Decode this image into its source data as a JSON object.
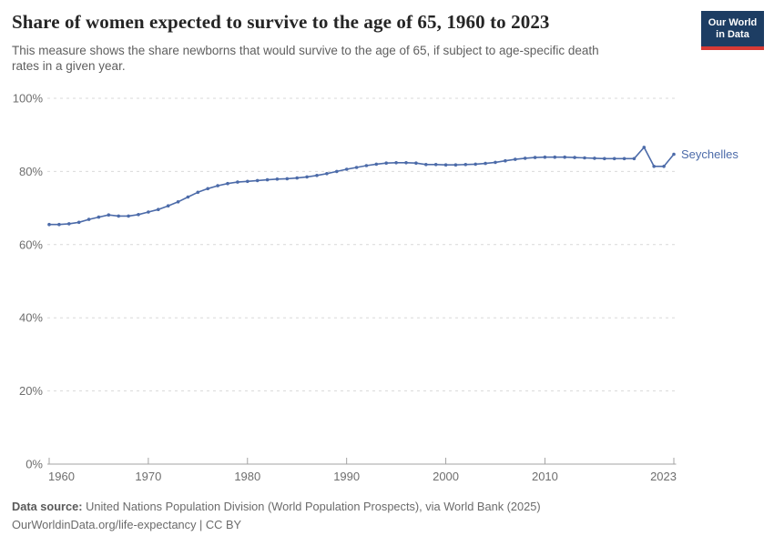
{
  "header": {
    "title": "Share of women expected to survive to the age of 65, 1960 to 2023",
    "subtitle": "This measure shows the share newborns that would survive to the age of 65, if subject to age-specific death\nrates in a given year.",
    "logo": {
      "line1": "Our World",
      "line2": "in Data"
    }
  },
  "chart_data": {
    "type": "line",
    "title": "Share of women expected to survive to the age of 65, 1960 to 2023",
    "xlabel": "",
    "ylabel": "",
    "xlim": [
      1960,
      2023
    ],
    "ylim": [
      0,
      100
    ],
    "grid": "horizontal-dashed",
    "legend_position": "end-of-line-label",
    "yticks": [
      0,
      20,
      40,
      60,
      80,
      100
    ],
    "ytick_labels": [
      "0%",
      "20%",
      "40%",
      "60%",
      "80%",
      "100%"
    ],
    "xticks": [
      1960,
      1970,
      1980,
      1990,
      2000,
      2010,
      2023
    ],
    "xtick_labels": [
      "1960",
      "1970",
      "1980",
      "1990",
      "2000",
      "2010",
      "2023"
    ],
    "series": [
      {
        "name": "Seychelles",
        "color": "#4c6ba9",
        "years": [
          1960,
          1961,
          1962,
          1963,
          1964,
          1965,
          1966,
          1967,
          1968,
          1969,
          1970,
          1971,
          1972,
          1973,
          1974,
          1975,
          1976,
          1977,
          1978,
          1979,
          1980,
          1981,
          1982,
          1983,
          1984,
          1985,
          1986,
          1987,
          1988,
          1989,
          1990,
          1991,
          1992,
          1993,
          1994,
          1995,
          1996,
          1997,
          1998,
          1999,
          2000,
          2001,
          2002,
          2003,
          2004,
          2005,
          2006,
          2007,
          2008,
          2009,
          2010,
          2011,
          2012,
          2013,
          2014,
          2015,
          2016,
          2017,
          2018,
          2019,
          2020,
          2021,
          2022,
          2023
        ],
        "values": [
          65.5,
          65.5,
          65.7,
          66.1,
          66.9,
          67.5,
          68.1,
          67.8,
          67.8,
          68.2,
          68.9,
          69.6,
          70.6,
          71.7,
          73.0,
          74.3,
          75.3,
          76.1,
          76.7,
          77.1,
          77.3,
          77.5,
          77.7,
          77.9,
          78.0,
          78.2,
          78.5,
          78.9,
          79.4,
          80.0,
          80.6,
          81.1,
          81.6,
          82.0,
          82.3,
          82.4,
          82.4,
          82.3,
          81.9,
          81.9,
          81.8,
          81.8,
          81.9,
          82.0,
          82.2,
          82.5,
          82.9,
          83.3,
          83.6,
          83.8,
          83.9,
          83.9,
          83.9,
          83.8,
          83.7,
          83.6,
          83.5,
          83.5,
          83.5,
          83.5,
          86.6,
          81.4,
          81.4,
          84.7
        ]
      }
    ]
  },
  "footer": {
    "source_label": "Data source:",
    "source_text": " United Nations Population Division (World Population Prospects), via World Bank (2025)",
    "citation": "OurWorldinData.org/life-expectancy | CC BY"
  },
  "colors": {
    "line": "#4c6ba9",
    "logo_bg": "#1d3d63",
    "logo_stripe": "#d73a35",
    "grid": "#d9d9d9",
    "axis": "#a3a3a3",
    "axis_text": "#6e6e6e",
    "title_text": "#252525",
    "subtitle_text": "#5f5f5f"
  }
}
